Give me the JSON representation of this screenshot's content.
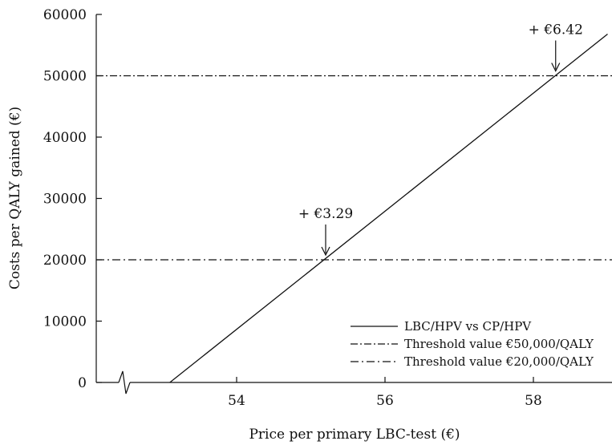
{
  "chart_data": {
    "type": "line",
    "xlabel": "Price per primary LBC-test (€)",
    "ylabel": "Costs per QALY gained (€)",
    "xlim": [
      52,
      59
    ],
    "ylim": [
      0,
      60000
    ],
    "x_ticks": [
      54,
      56,
      58
    ],
    "y_ticks": [
      0,
      10000,
      20000,
      30000,
      40000,
      50000,
      60000
    ],
    "x_axis_break": true,
    "grid": false,
    "legend_position": "bottom-right",
    "series": [
      {
        "name": "LBC/HPV vs CP/HPV",
        "style": "solid",
        "x": [
          53.1,
          59.0
        ],
        "y": [
          0,
          56800
        ]
      },
      {
        "name": "Threshold value €50,000/QALY",
        "style": "dashed",
        "x": [
          52,
          59
        ],
        "y": [
          50000,
          50000
        ]
      },
      {
        "name": "Threshold value €20,000/QALY",
        "style": "dashdot",
        "x": [
          52,
          59
        ],
        "y": [
          20000,
          20000
        ]
      }
    ],
    "annotations": [
      {
        "text": "+ €3.29",
        "x": 55.2,
        "y": 20000
      },
      {
        "text": "+ €6.42",
        "x": 58.3,
        "y": 50000
      }
    ]
  }
}
